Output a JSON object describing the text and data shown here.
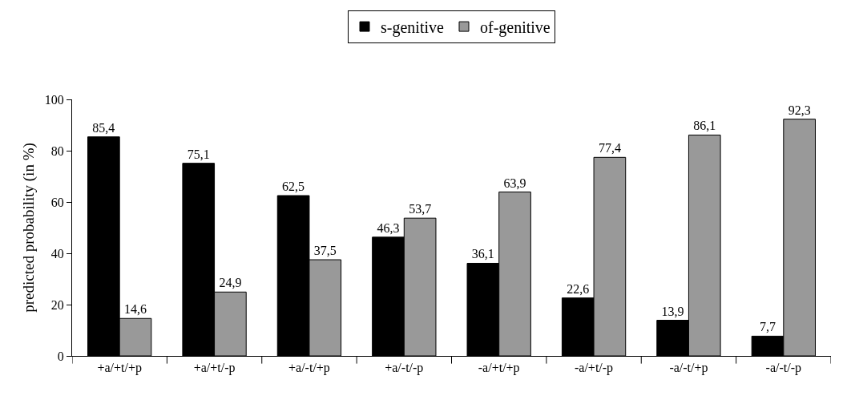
{
  "chart_data": {
    "type": "bar",
    "ylabel": "predicted probability (in %)",
    "categories": [
      "+a/+t/+p",
      "+a/+t/-p",
      "+a/-t/+p",
      "+a/-t/-p",
      "-a/+t/+p",
      "-a/+t/-p",
      "-a/-t/+p",
      "-a/-t/-p"
    ],
    "series": [
      {
        "name": "s-genitive",
        "color": "#000000",
        "values": [
          85.4,
          75.1,
          62.5,
          46.3,
          36.1,
          22.6,
          13.9,
          7.7
        ],
        "value_labels": [
          "85,4",
          "75,1",
          "62,5",
          "46,3",
          "36,1",
          "22,6",
          "13,9",
          "7,7"
        ]
      },
      {
        "name": "of-genitive",
        "color": "#999999",
        "values": [
          14.6,
          24.9,
          37.5,
          53.7,
          63.9,
          77.4,
          86.1,
          92.3
        ],
        "value_labels": [
          "14,6",
          "24,9",
          "37,5",
          "53,7",
          "63,9",
          "77,4",
          "86,1",
          "92,3"
        ]
      }
    ],
    "ylim": [
      0,
      100
    ],
    "yticks": [
      0,
      20,
      40,
      60,
      80,
      100
    ],
    "legend": "top"
  }
}
